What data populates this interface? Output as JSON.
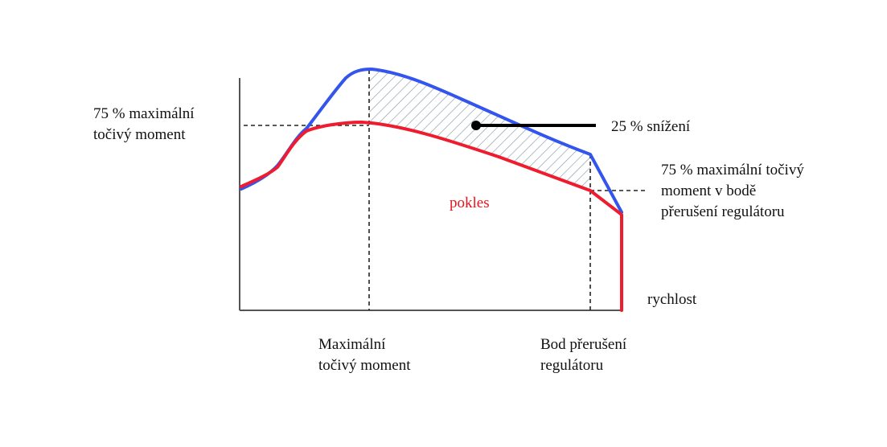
{
  "labels": {
    "left_threshold": [
      "75 % maximální",
      "točivý moment"
    ],
    "reduction": "25 % snížení",
    "right_threshold": [
      "75 % maximální točivý",
      "moment v bodě",
      "přerušení regulátoru"
    ],
    "drop": "pokles",
    "x_axis": "rychlost",
    "max_torque_point": [
      "Maximální",
      "točivý moment"
    ],
    "governor_breakpoint": [
      "Bod přerušení",
      "regulátoru"
    ]
  },
  "colors": {
    "full_torque_curve": "#3355ee",
    "reduced_torque_curve": "#ee1c2e",
    "drop_label": "#e8141c",
    "axes": "#555555",
    "hatch": "#8a9aa8",
    "pointer": "#000000"
  }
}
